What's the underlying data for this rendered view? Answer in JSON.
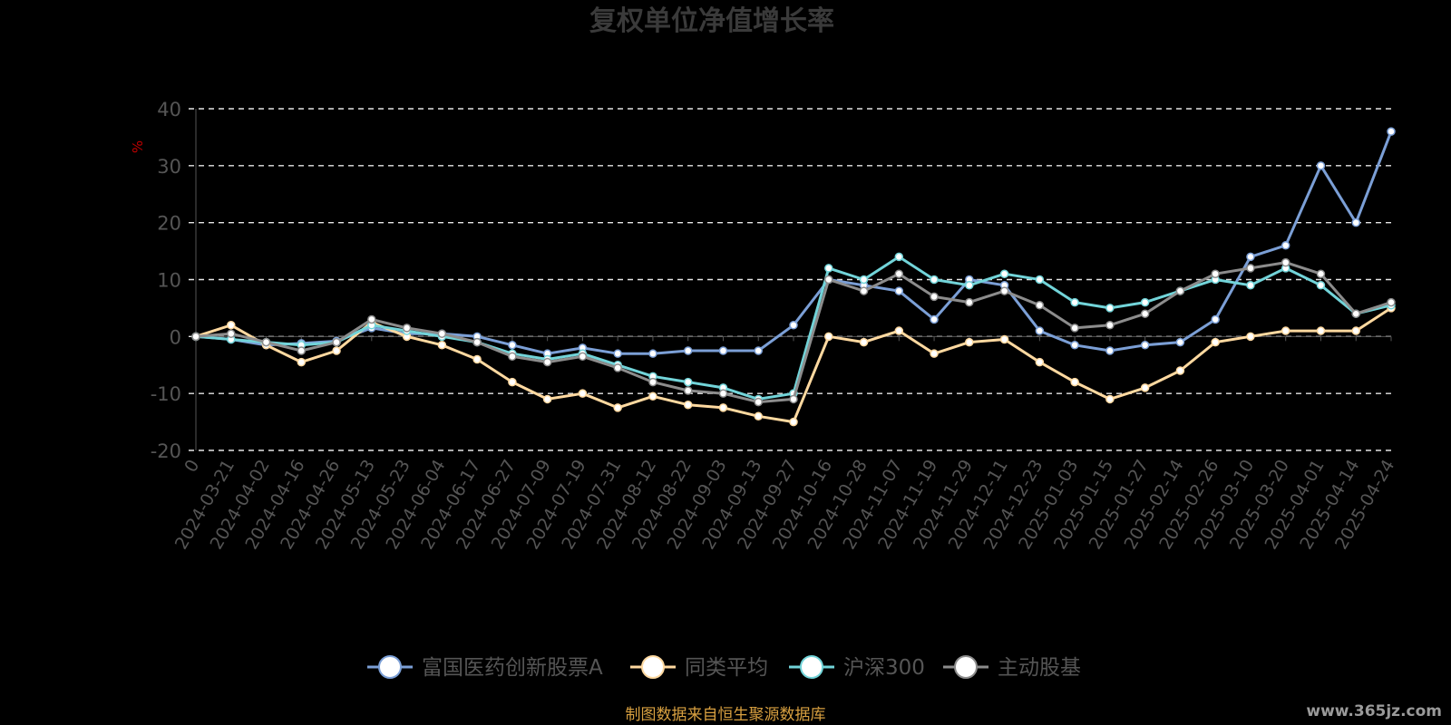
{
  "chart_data": {
    "type": "line",
    "title": "复权单位净值增长率",
    "ylabel": "%",
    "xlabel": "",
    "ylim": [
      -20,
      40
    ],
    "yticks": [
      40,
      30,
      20,
      10,
      0,
      -10,
      -20
    ],
    "grid": true,
    "legend_position": "bottom",
    "x": [
      "0",
      "2024-03-21",
      "2024-04-02",
      "2024-04-16",
      "2024-04-26",
      "2024-05-13",
      "2024-05-23",
      "2024-06-04",
      "2024-06-17",
      "2024-06-27",
      "2024-07-09",
      "2024-07-19",
      "2024-07-31",
      "2024-08-12",
      "2024-08-22",
      "2024-09-03",
      "2024-09-13",
      "2024-09-27",
      "2024-10-16",
      "2024-10-28",
      "2024-11-07",
      "2024-11-19",
      "2024-11-29",
      "2024-12-11",
      "2024-12-23",
      "2025-01-03",
      "2025-01-15",
      "2025-01-27",
      "2025-02-14",
      "2025-02-26",
      "2025-03-10",
      "2025-03-20",
      "2025-04-01",
      "2025-04-14",
      "2025-04-24"
    ],
    "series": [
      {
        "name": "富国医药创新股票A",
        "color": "#7b9fd6",
        "values": [
          0,
          -0.5,
          -1.5,
          -1.2,
          -0.8,
          1.5,
          0.5,
          0.5,
          0,
          -1.5,
          -3,
          -2,
          -3,
          -3,
          -2.5,
          -2.5,
          -2.5,
          2,
          10,
          9,
          8,
          3,
          10,
          9,
          1,
          -1.5,
          -2.5,
          -1.5,
          -1,
          3,
          14,
          16,
          30,
          20,
          36
        ]
      },
      {
        "name": "同类平均",
        "color": "#ffd9a0",
        "values": [
          0,
          2,
          -1.5,
          -4.5,
          -2.5,
          2.5,
          0,
          -1.5,
          -4,
          -8,
          -11,
          -10,
          -12.5,
          -10.5,
          -12,
          -12.5,
          -14,
          -15,
          0,
          -1,
          1,
          -3,
          -1,
          -0.5,
          -4.5,
          -8,
          -11,
          -9,
          -6,
          -1,
          0,
          1,
          1,
          1,
          5
        ]
      },
      {
        "name": "沪深300",
        "color": "#72d4d9",
        "values": [
          0,
          -0.5,
          -1,
          -1.5,
          -1,
          2,
          1,
          0,
          -1,
          -3,
          -4,
          -3,
          -5,
          -7,
          -8,
          -9,
          -11,
          -10,
          12,
          10,
          14,
          10,
          9,
          11,
          10,
          6,
          5,
          6,
          8,
          10,
          9,
          12,
          9,
          4,
          5.5
        ]
      },
      {
        "name": "主动股基",
        "color": "#8c8c8c",
        "values": [
          0,
          0.5,
          -1,
          -2.5,
          -1,
          3,
          1.5,
          0.5,
          -1,
          -3.5,
          -4.5,
          -3.5,
          -5.5,
          -8,
          -9.5,
          -10,
          -11.5,
          -11,
          10,
          8,
          11,
          7,
          6,
          8,
          5.5,
          1.5,
          2,
          4,
          8,
          11,
          12,
          13,
          11,
          4,
          6
        ]
      }
    ]
  },
  "source_text": "制图数据来自恒生聚源数据库",
  "watermark": "www.365jz.com"
}
